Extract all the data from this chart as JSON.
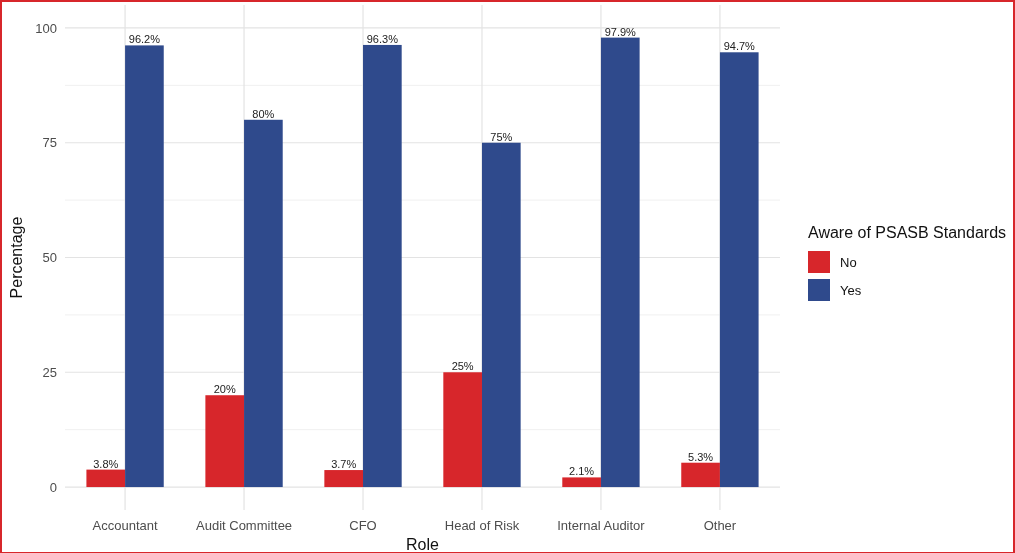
{
  "chart_data": {
    "type": "bar",
    "xlabel": "Role",
    "ylabel": "Percentage",
    "legend_title": "Aware of PSASB Standards",
    "categories": [
      "Accountant",
      "Audit Committee",
      "CFO",
      "Head of Risk",
      "Internal Auditor",
      "Other"
    ],
    "series": [
      {
        "name": "No",
        "color": "#d7262b",
        "values": [
          3.8,
          20,
          3.7,
          25,
          2.1,
          5.3
        ],
        "value_labels": [
          "3.8%",
          "20%",
          "3.7%",
          "25%",
          "2.1%",
          "5.3%"
        ]
      },
      {
        "name": "Yes",
        "color": "#2f4a8c",
        "values": [
          96.2,
          80,
          96.3,
          75,
          97.9,
          94.7
        ],
        "value_labels": [
          "96.2%",
          "80%",
          "96.3%",
          "75%",
          "97.9%",
          "94.7%"
        ]
      }
    ],
    "ylim": [
      -5,
      105
    ],
    "yticks": [
      0,
      25,
      50,
      75,
      100
    ],
    "grid": true,
    "legend": "right"
  }
}
